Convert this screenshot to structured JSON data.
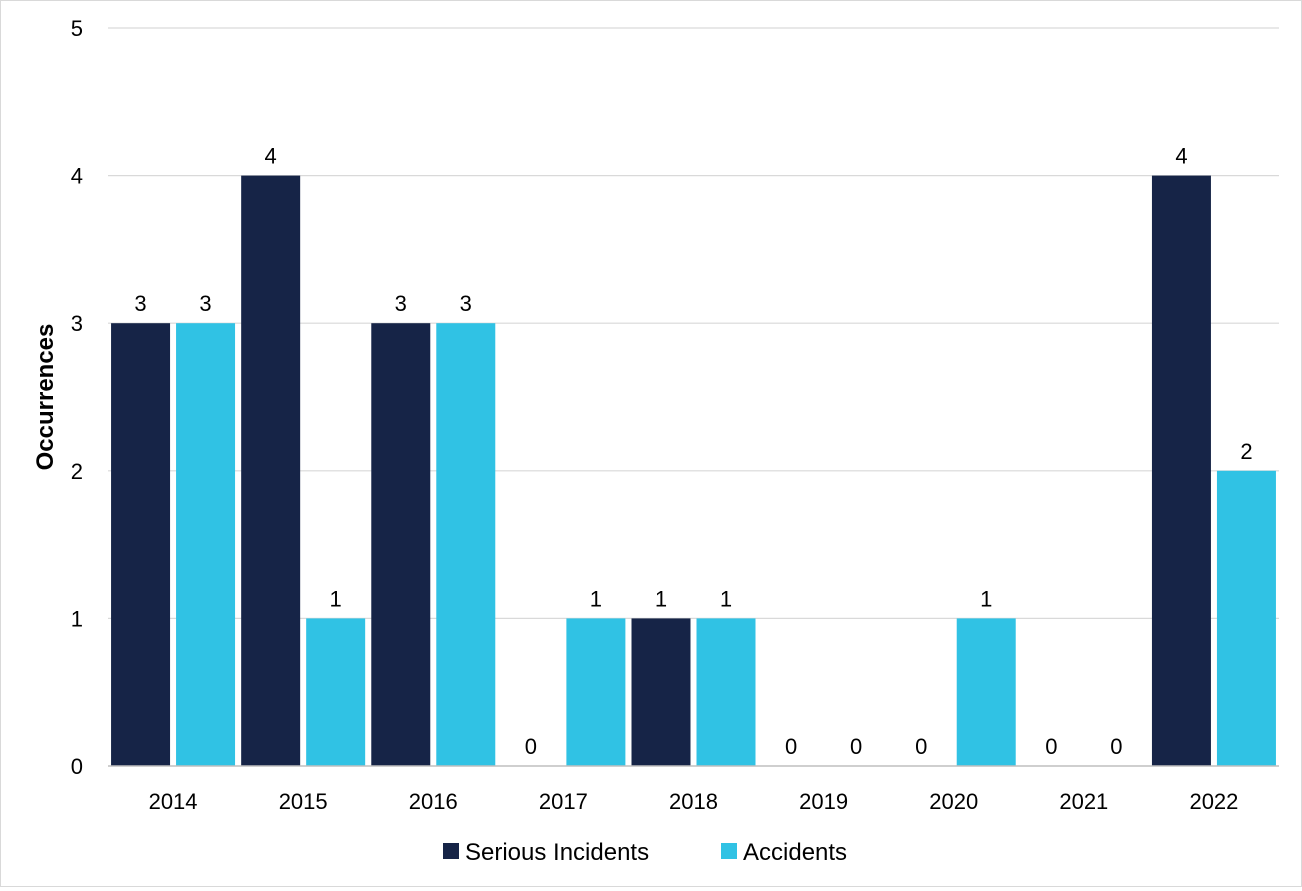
{
  "chart_data": {
    "type": "bar",
    "title": "",
    "xlabel": "",
    "ylabel": "Occurrences",
    "categories": [
      "2014",
      "2015",
      "2016",
      "2017",
      "2018",
      "2019",
      "2020",
      "2021",
      "2022"
    ],
    "series": [
      {
        "name": "Serious Incidents",
        "color": "#162447",
        "values": [
          3,
          4,
          3,
          0,
          1,
          0,
          0,
          0,
          4
        ]
      },
      {
        "name": "Accidents",
        "color": "#30c2e4",
        "values": [
          3,
          1,
          3,
          1,
          1,
          0,
          1,
          0,
          2
        ]
      }
    ],
    "ylim": [
      0,
      5
    ],
    "yticks": [
      "0",
      "1",
      "2",
      "3",
      "4",
      "5"
    ],
    "grid": true,
    "legend_position": "bottom"
  }
}
